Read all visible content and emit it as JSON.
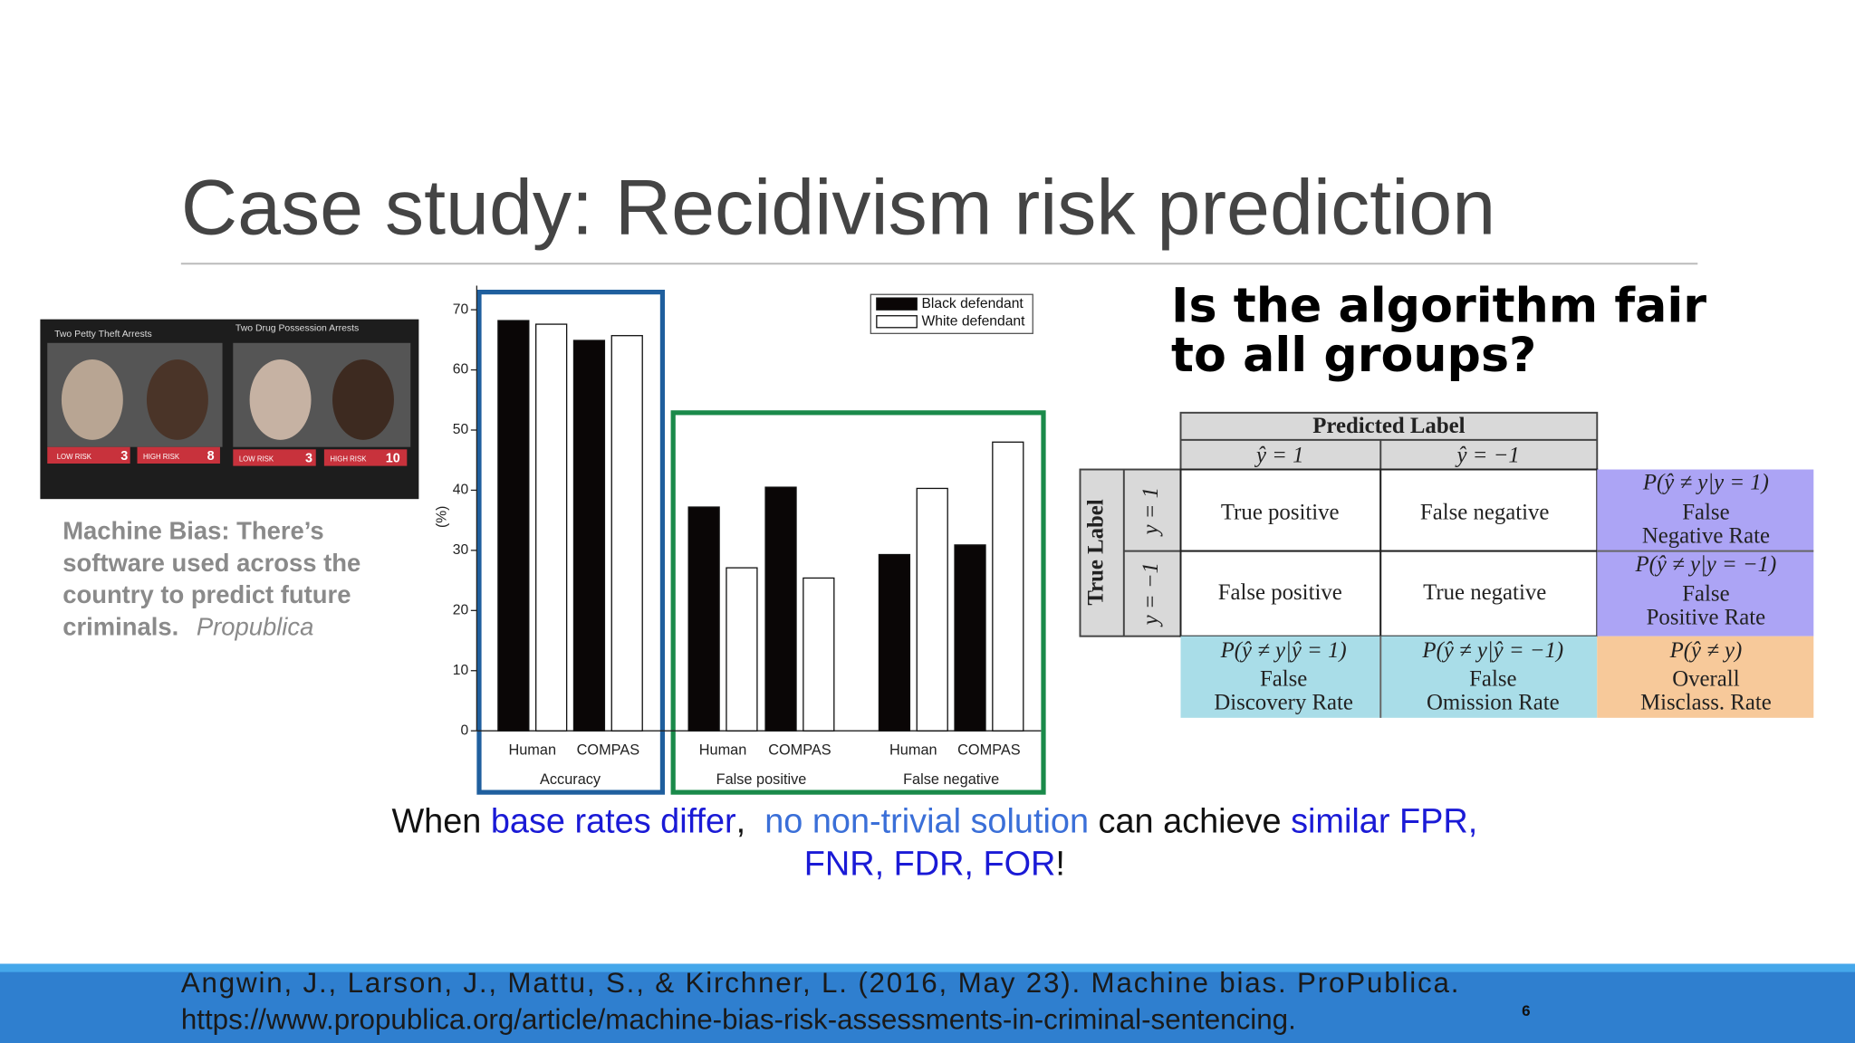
{
  "slide_title": "Case study: Recidivism risk prediction",
  "photo": {
    "panels": [
      "Two Petty Theft Arrests",
      "Two Drug Possession Arrests"
    ],
    "risk_labels": [
      "LOW RISK",
      "HIGH RISK",
      "LOW RISK",
      "HIGH RISK"
    ],
    "scores": [
      "3",
      "8",
      "3",
      "10"
    ]
  },
  "caption": {
    "lines": [
      "Machine Bias: There’s",
      "software used across the",
      "country to predict future",
      "criminals."
    ],
    "source": "Propublica"
  },
  "chart_data": {
    "type": "bar",
    "y_label": "(%)",
    "categories": [
      "Human",
      "COMPAS",
      "Human",
      "COMPAS",
      "Human",
      "COMPAS"
    ],
    "group_labels": [
      "Accuracy",
      "False positive",
      "False negative"
    ],
    "series": [
      {
        "name": "Black defendant",
        "color": "#0a0606",
        "values": [
          68.2,
          64.9,
          37.2,
          40.5,
          29.3,
          30.9
        ]
      },
      {
        "name": "White defendant",
        "color": "#ffffff",
        "values": [
          67.6,
          65.7,
          27.1,
          25.4,
          40.3,
          48.0
        ]
      }
    ],
    "ylim": [
      0,
      74
    ],
    "yticks": [
      0,
      10,
      20,
      30,
      40,
      50,
      60,
      70
    ],
    "legend": "upper right"
  },
  "question": [
    "Is the algorithm fair",
    "to all groups?"
  ],
  "confusion_table": {
    "header": "Predicted Label",
    "columns": [
      "ŷ = 1",
      "ŷ = −1"
    ],
    "row_header": "True Label",
    "rows": [
      {
        "label": "y = 1",
        "cells": [
          "True positive",
          "False negative"
        ],
        "rate": {
          "formula": "P(ŷ ≠ y|y = 1)",
          "name": [
            "False",
            "Negative Rate"
          ]
        }
      },
      {
        "label": "y = −1",
        "cells": [
          "False positive",
          "True negative"
        ],
        "rate": {
          "formula": "P(ŷ ≠ y|y = −1)",
          "name": [
            "False",
            "Positive Rate"
          ]
        }
      }
    ],
    "bottom": [
      {
        "formula": "P(ŷ ≠ y|ŷ = 1)",
        "name": [
          "False",
          "Discovery Rate"
        ]
      },
      {
        "formula": "P(ŷ ≠ y|ŷ = −1)",
        "name": [
          "False",
          "Omission Rate"
        ]
      },
      {
        "formula": "P(ŷ ≠ y)",
        "name": [
          "Overall",
          "Misclass. Rate"
        ]
      }
    ]
  },
  "statement": {
    "lines": [
      [
        {
          "text": "When ",
          "color": "#111111"
        },
        {
          "text": "base rates differ",
          "color": "#1a1ad6"
        },
        {
          "text": ",  ",
          "color": "#111111"
        },
        {
          "text": "no non-trivial solution",
          "color": "#3a6fd8"
        },
        {
          "text": " can achieve ",
          "color": "#111111"
        },
        {
          "text": "similar FPR,",
          "color": "#1a1ad6"
        }
      ],
      [
        {
          "text": "FNR, FDR, FOR",
          "color": "#1a1ad6"
        },
        {
          "text": "!",
          "color": "#111111"
        }
      ]
    ]
  },
  "citation": [
    "Angwin, J., Larson, J., Mattu, S., & Kirchner, L. (2016, May 23). Machine bias. ProPublica.",
    "https://www.propublica.org/article/machine-bias-risk-assessments-in-criminal-sentencing."
  ],
  "page_number": "6"
}
